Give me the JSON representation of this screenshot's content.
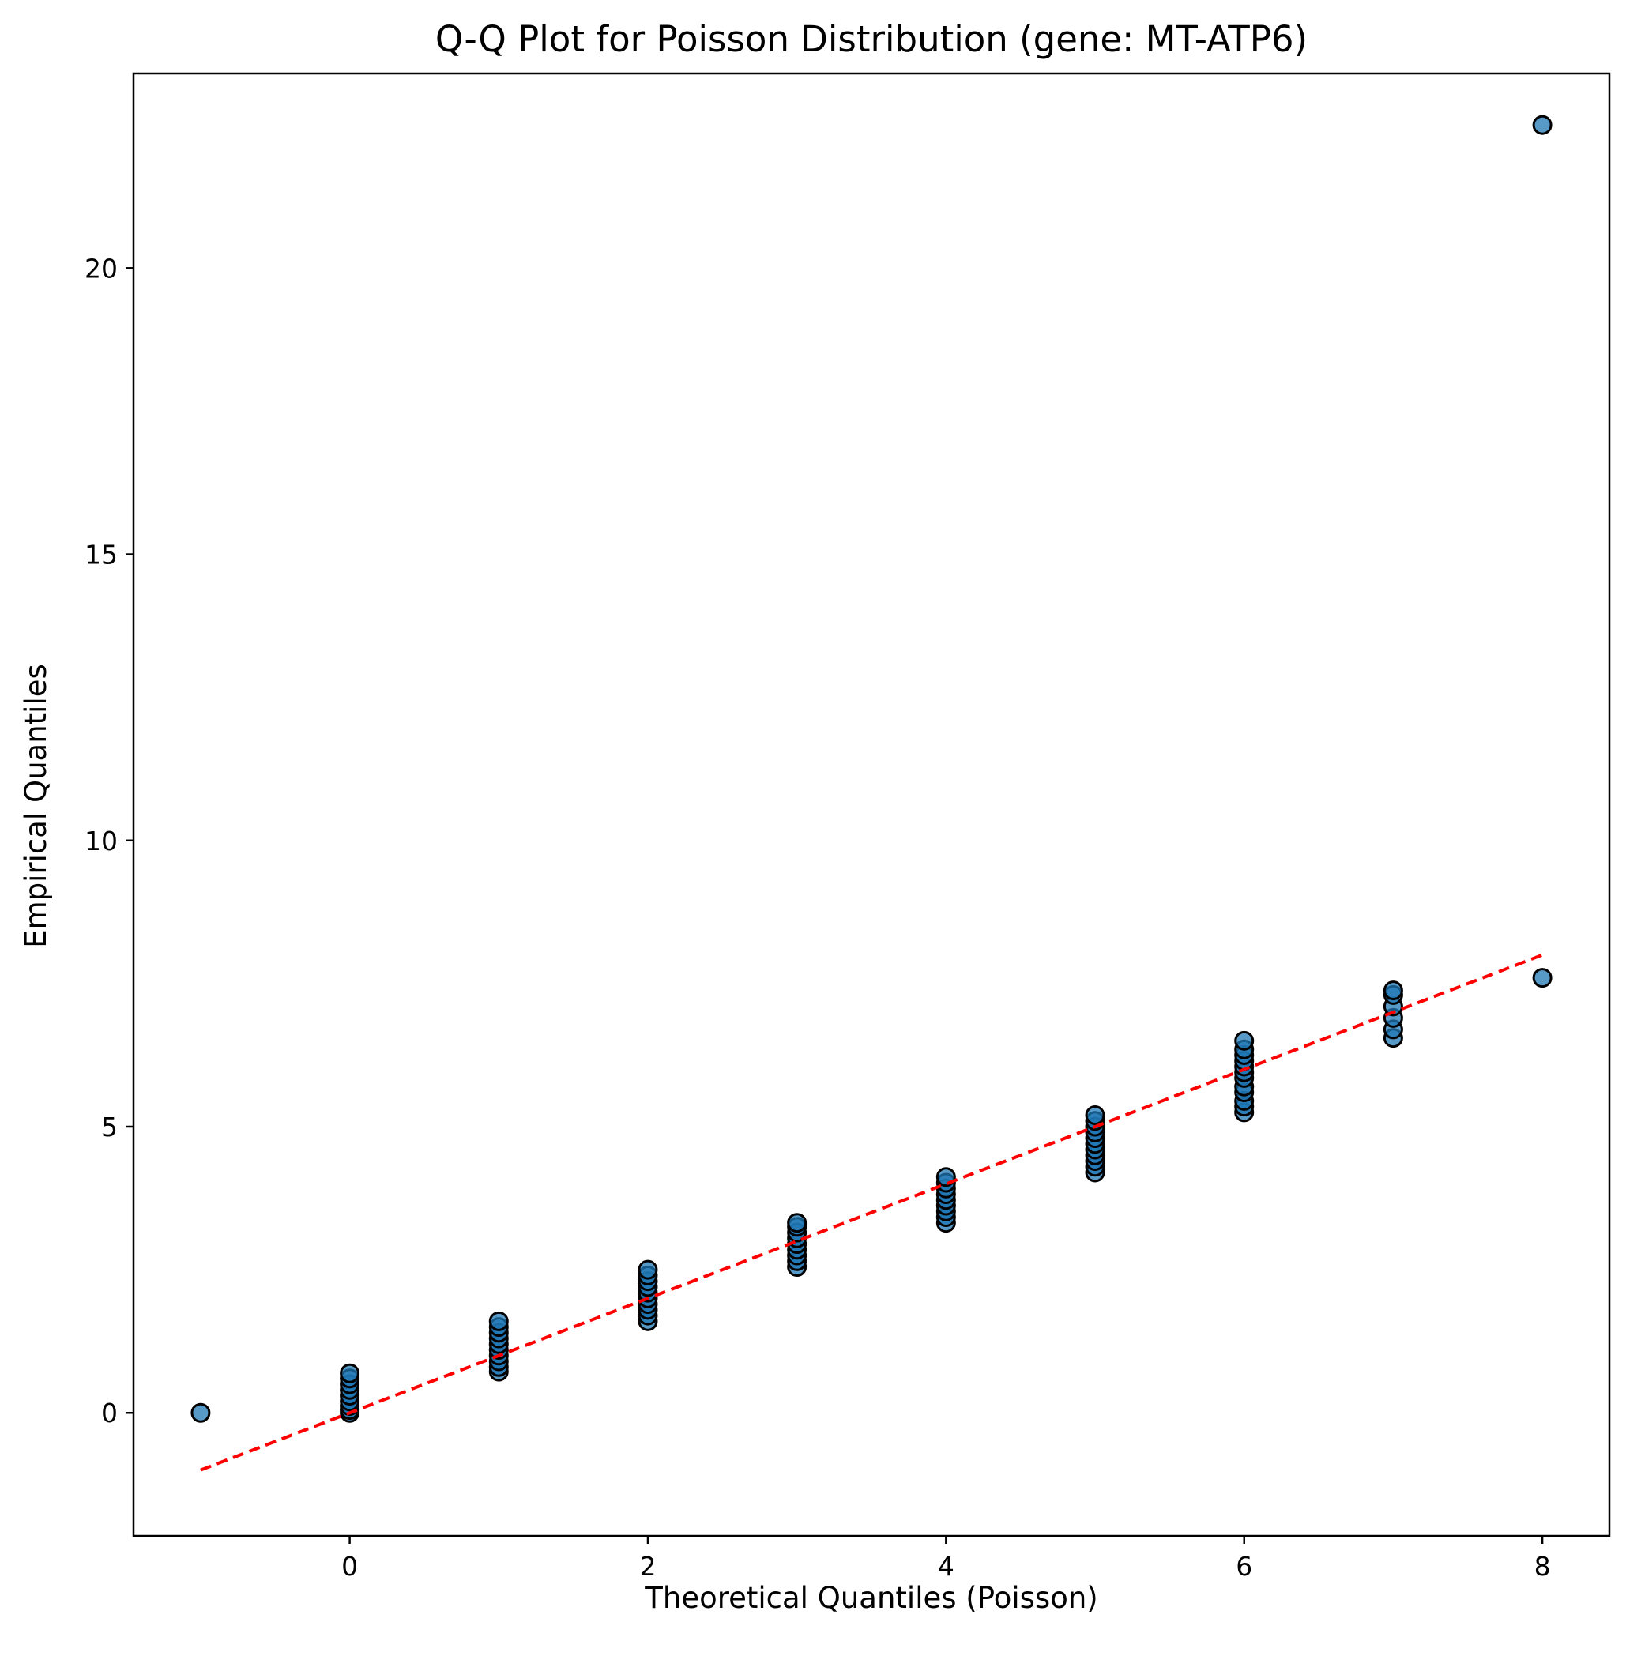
{
  "chart_data": {
    "type": "scatter",
    "title": "Q-Q Plot for Poisson Distribution (gene: MT-ATP6)",
    "xlabel": "Theoretical Quantiles (Poisson)",
    "ylabel": "Empirical Quantiles",
    "xlim": [
      -1.45,
      8.45
    ],
    "ylim": [
      -2.15,
      23.4
    ],
    "xticks": [
      0,
      2,
      4,
      6,
      8
    ],
    "xtick_labels": [
      "0",
      "2",
      "4",
      "6",
      "8"
    ],
    "yticks": [
      0,
      5,
      10,
      15,
      20
    ],
    "ytick_labels": [
      "0",
      "5",
      "10",
      "15",
      "20"
    ],
    "grid": false,
    "legend": null,
    "series": [
      {
        "marker_color": "#1f77b4",
        "marker_edge_color": "#000000",
        "points": [
          {
            "x": -1,
            "y": 0.0
          },
          {
            "x": 0,
            "y": 0.0
          },
          {
            "x": 0,
            "y": 0.05
          },
          {
            "x": 0,
            "y": 0.12
          },
          {
            "x": 0,
            "y": 0.2
          },
          {
            "x": 0,
            "y": 0.3
          },
          {
            "x": 0,
            "y": 0.4
          },
          {
            "x": 0,
            "y": 0.5
          },
          {
            "x": 0,
            "y": 0.6
          },
          {
            "x": 0,
            "y": 0.69
          },
          {
            "x": 1,
            "y": 0.72
          },
          {
            "x": 1,
            "y": 0.8
          },
          {
            "x": 1,
            "y": 0.9
          },
          {
            "x": 1,
            "y": 1.0
          },
          {
            "x": 1,
            "y": 1.1
          },
          {
            "x": 1,
            "y": 1.2
          },
          {
            "x": 1,
            "y": 1.3
          },
          {
            "x": 1,
            "y": 1.4
          },
          {
            "x": 1,
            "y": 1.5
          },
          {
            "x": 1,
            "y": 1.6
          },
          {
            "x": 2,
            "y": 1.6
          },
          {
            "x": 2,
            "y": 1.7
          },
          {
            "x": 2,
            "y": 1.8
          },
          {
            "x": 2,
            "y": 1.9
          },
          {
            "x": 2,
            "y": 2.0
          },
          {
            "x": 2,
            "y": 2.1
          },
          {
            "x": 2,
            "y": 2.2
          },
          {
            "x": 2,
            "y": 2.3
          },
          {
            "x": 2,
            "y": 2.4
          },
          {
            "x": 2,
            "y": 2.5
          },
          {
            "x": 3,
            "y": 2.55
          },
          {
            "x": 3,
            "y": 2.65
          },
          {
            "x": 3,
            "y": 2.75
          },
          {
            "x": 3,
            "y": 2.85
          },
          {
            "x": 3,
            "y": 2.95
          },
          {
            "x": 3,
            "y": 3.05
          },
          {
            "x": 3,
            "y": 3.15
          },
          {
            "x": 3,
            "y": 3.25
          },
          {
            "x": 3,
            "y": 3.32
          },
          {
            "x": 4,
            "y": 3.32
          },
          {
            "x": 4,
            "y": 3.42
          },
          {
            "x": 4,
            "y": 3.52
          },
          {
            "x": 4,
            "y": 3.62
          },
          {
            "x": 4,
            "y": 3.72
          },
          {
            "x": 4,
            "y": 3.82
          },
          {
            "x": 4,
            "y": 3.92
          },
          {
            "x": 4,
            "y": 4.02
          },
          {
            "x": 4,
            "y": 4.12
          },
          {
            "x": 5,
            "y": 4.2
          },
          {
            "x": 5,
            "y": 4.3
          },
          {
            "x": 5,
            "y": 4.4
          },
          {
            "x": 5,
            "y": 4.5
          },
          {
            "x": 5,
            "y": 4.6
          },
          {
            "x": 5,
            "y": 4.7
          },
          {
            "x": 5,
            "y": 4.8
          },
          {
            "x": 5,
            "y": 4.9
          },
          {
            "x": 5,
            "y": 5.0
          },
          {
            "x": 5,
            "y": 5.1
          },
          {
            "x": 5,
            "y": 5.2
          },
          {
            "x": 6,
            "y": 5.25
          },
          {
            "x": 6,
            "y": 5.35
          },
          {
            "x": 6,
            "y": 5.45
          },
          {
            "x": 6,
            "y": 5.6
          },
          {
            "x": 6,
            "y": 5.7
          },
          {
            "x": 6,
            "y": 5.85
          },
          {
            "x": 6,
            "y": 5.95
          },
          {
            "x": 6,
            "y": 6.05
          },
          {
            "x": 6,
            "y": 6.15
          },
          {
            "x": 6,
            "y": 6.25
          },
          {
            "x": 6,
            "y": 6.35
          },
          {
            "x": 6,
            "y": 6.5
          },
          {
            "x": 7,
            "y": 6.55
          },
          {
            "x": 7,
            "y": 6.7
          },
          {
            "x": 7,
            "y": 6.9
          },
          {
            "x": 7,
            "y": 7.1
          },
          {
            "x": 7,
            "y": 7.3
          },
          {
            "x": 7,
            "y": 7.38
          },
          {
            "x": 8,
            "y": 7.6
          },
          {
            "x": 8,
            "y": 22.5
          }
        ]
      }
    ],
    "reference_line": {
      "x": [
        -1,
        8
      ],
      "y": [
        -1,
        8
      ],
      "color": "#ff0000",
      "style": "dashed"
    }
  }
}
